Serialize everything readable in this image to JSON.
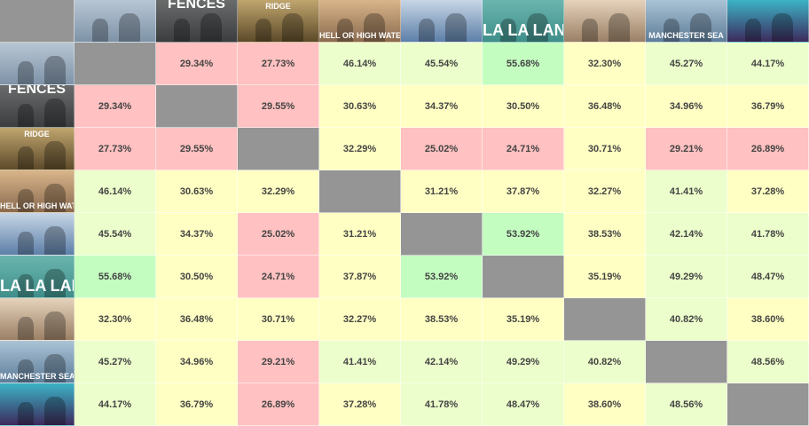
{
  "films": [
    {
      "key": "arrival",
      "poster_text": "",
      "colors": [
        "#7e93a8",
        "#b8c6d4"
      ]
    },
    {
      "key": "fences",
      "poster_text": "FENCES",
      "colors": [
        "#3b3d3e",
        "#6a6c6c"
      ]
    },
    {
      "key": "hacksaw-ridge",
      "poster_text": "RIDGE",
      "colors": [
        "#5c4a2a",
        "#c0a56e"
      ]
    },
    {
      "key": "hell-or-high-water",
      "poster_text": "HELL OR HIGH WATER",
      "colors": [
        "#8a6b4f",
        "#d9b58a"
      ]
    },
    {
      "key": "hidden-figures",
      "poster_text": "",
      "colors": [
        "#5d7fa8",
        "#c7d6e6"
      ]
    },
    {
      "key": "la-la-land",
      "poster_text": "LA LA LAND",
      "colors": [
        "#3f8e8a",
        "#6bb5ae"
      ]
    },
    {
      "key": "lion",
      "poster_text": "",
      "colors": [
        "#9a8066",
        "#e6d2bb"
      ]
    },
    {
      "key": "manchester-by-the-sea",
      "poster_text": "MANCHESTER SEA",
      "colors": [
        "#5e7d99",
        "#aac3d6"
      ]
    },
    {
      "key": "moonlight",
      "poster_text": "",
      "colors": [
        "#3d2a5c",
        "#3bb3c6"
      ]
    }
  ],
  "matrix": [
    [
      null,
      "29.34%",
      "27.73%",
      "46.14%",
      "45.54%",
      "55.68%",
      "32.30%",
      "45.27%",
      "44.17%"
    ],
    [
      "29.34%",
      null,
      "29.55%",
      "30.63%",
      "34.37%",
      "30.50%",
      "36.48%",
      "34.96%",
      "36.79%"
    ],
    [
      "27.73%",
      "29.55%",
      null,
      "32.29%",
      "25.02%",
      "24.71%",
      "30.71%",
      "29.21%",
      "26.89%"
    ],
    [
      "46.14%",
      "30.63%",
      "32.29%",
      null,
      "31.21%",
      "37.87%",
      "32.27%",
      "41.41%",
      "37.28%"
    ],
    [
      "45.54%",
      "34.37%",
      "25.02%",
      "31.21%",
      null,
      "53.92%",
      "38.53%",
      "42.14%",
      "41.78%"
    ],
    [
      "55.68%",
      "30.50%",
      "24.71%",
      "37.87%",
      "53.92%",
      null,
      "35.19%",
      "49.29%",
      "48.47%"
    ],
    [
      "32.30%",
      "36.48%",
      "30.71%",
      "32.27%",
      "38.53%",
      "35.19%",
      null,
      "40.82%",
      "38.60%"
    ],
    [
      "45.27%",
      "34.96%",
      "29.21%",
      "41.41%",
      "42.14%",
      "49.29%",
      "40.82%",
      null,
      "48.56%"
    ],
    [
      "44.17%",
      "36.79%",
      "26.89%",
      "37.28%",
      "41.78%",
      "48.47%",
      "38.60%",
      "48.56%",
      null
    ]
  ],
  "colors": {
    "low": "#ffc1c1",
    "mid": "#ffffc3",
    "mid_high": "#ecfecb",
    "high": "#c4fdc0",
    "diagonal": "#959595"
  }
}
